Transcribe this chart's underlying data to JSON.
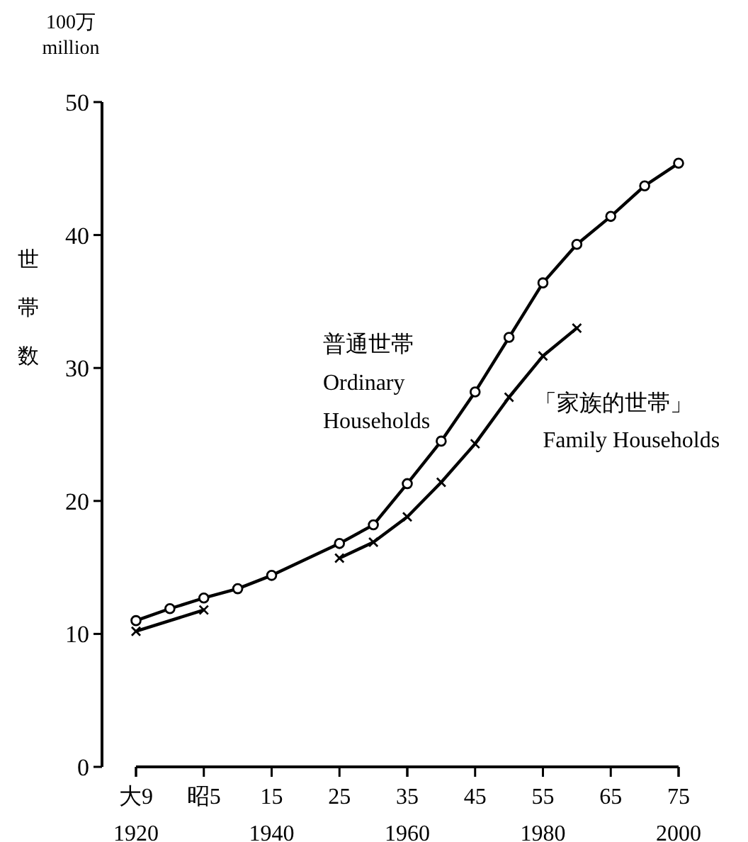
{
  "chart_data": {
    "type": "line",
    "ylabel": "世帯数",
    "annotations": [
      "100万\nmillion"
    ],
    "xlim": [
      1920,
      2000
    ],
    "ylim": [
      0,
      50
    ],
    "xticks": [
      1920,
      1940,
      1960,
      1980,
      2000
    ],
    "x2lim": [
      -5,
      75
    ],
    "x2ticks": [
      {
        "value": -5,
        "label": "大9"
      },
      {
        "value": 5,
        "label": "昭5"
      },
      15,
      25,
      35,
      45,
      55,
      65,
      75
    ],
    "yticks": [
      0,
      10,
      20,
      30,
      40,
      50
    ],
    "grid": false,
    "legend": false,
    "series": [
      {
        "name": "普通世帯\nOrdinary\nHouseholds",
        "color": "#000000",
        "marker": "circle",
        "x": [
          1920,
          1925,
          1930,
          1935,
          1940,
          1950,
          1955,
          1960,
          1965,
          1970,
          1975,
          1980,
          1985,
          1990,
          1995,
          2000
        ],
        "values": [
          11.0,
          11.9,
          12.7,
          13.4,
          14.4,
          16.8,
          18.2,
          21.3,
          24.5,
          28.2,
          32.3,
          36.4,
          39.3,
          41.4,
          43.7,
          45.4
        ]
      },
      {
        "name": "「家族的世帯」\nFamily Households",
        "color": "#000000",
        "marker": "cross",
        "x": [
          1950,
          1955,
          1960,
          1965,
          1970,
          1975,
          1980,
          1985
        ],
        "values": [
          15.7,
          16.9,
          18.8,
          21.4,
          24.3,
          27.8,
          30.9,
          33.0
        ]
      },
      {
        "color": "#000000",
        "marker": "cross",
        "x": [
          1920,
          1930
        ],
        "values": [
          10.2,
          11.8
        ]
      }
    ]
  }
}
